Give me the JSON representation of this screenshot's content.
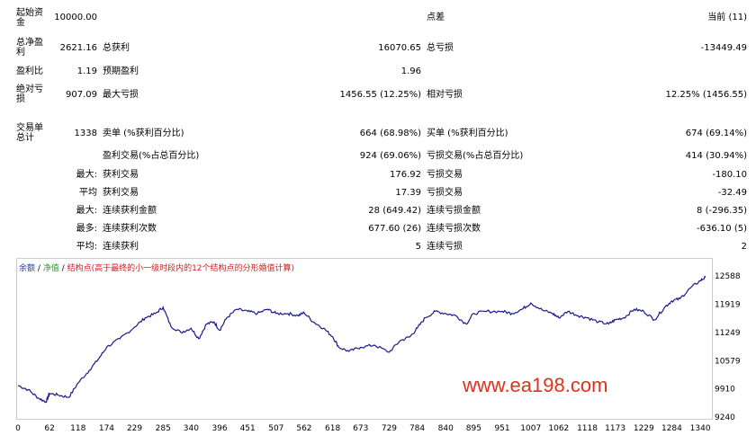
{
  "report": {
    "initial_deposit_label": "起始资金",
    "initial_deposit_value": "10000.00",
    "spread_label": "点差",
    "spread_value": "当前 (11)",
    "total_net_profit_label": "总净盈利",
    "total_net_profit_value": "2621.16",
    "gross_profit_label": "总获利",
    "gross_profit_value": "16070.65",
    "gross_loss_label": "总亏损",
    "gross_loss_value": "-13449.49",
    "profit_factor_label": "盈利比",
    "profit_factor_value": "1.19",
    "expected_payoff_label": "预期盈利",
    "expected_payoff_value": "1.96",
    "abs_drawdown_label": "绝对亏损",
    "abs_drawdown_value": "907.09",
    "max_drawdown_label": "最大亏损",
    "max_drawdown_value": "1456.55 (12.25%)",
    "rel_drawdown_label": "相对亏损",
    "rel_drawdown_value": "12.25% (1456.55)",
    "total_trades_label": "交易单总计",
    "total_trades_value": "1338",
    "short_label": "卖单 (%获利百分比)",
    "short_value": "664 (68.98%)",
    "long_label": "买单 (%获利百分比)",
    "long_value": "674 (69.14%)",
    "profit_trades_label": "盈利交易(%占总百分比)",
    "profit_trades_value": "924 (69.06%)",
    "loss_trades_label": "亏损交易(%占总百分比)",
    "loss_trades_value": "414 (30.94%)",
    "largest_prefix": "最大:",
    "largest_profit_label": "获利交易",
    "largest_profit_value": "176.92",
    "largest_loss_label": "亏损交易",
    "largest_loss_value": "-180.10",
    "average_prefix": "平均",
    "avg_profit_label": "获利交易",
    "avg_profit_value": "17.39",
    "avg_loss_label": "亏损交易",
    "avg_loss_value": "-32.49",
    "max_prefix": "最大:",
    "max_consec_wins_label": "连续获利金额",
    "max_consec_wins_value": "28 (649.42)",
    "max_consec_losses_label": "连续亏损金额",
    "max_consec_losses_value": "8 (-296.35)",
    "maximal_prefix": "最多:",
    "maximal_consec_profit_label": "连续获利次数",
    "maximal_consec_profit_value": "677.60 (26)",
    "maximal_consec_loss_label": "连续亏损次数",
    "maximal_consec_loss_value": "-636.10 (5)",
    "avg2_prefix": "平均:",
    "avg_consec_wins_label": "连续获利",
    "avg_consec_wins_value": "5",
    "avg_consec_losses_label": "连续亏损",
    "avg_consec_losses_value": "2"
  },
  "legend": {
    "balance": "余额",
    "sep1": " / ",
    "equity": "净值",
    "sep2": " / ",
    "points": "结构点(高于最终的小一级时段内的12个结构点的分形婚值计算)",
    "balance_color": "#1f3fa0",
    "equity_color": "#2e9b2e",
    "points_color": "#cc2222"
  },
  "watermark": "www.ea198.com",
  "chart_data": {
    "type": "line",
    "series": [
      {
        "name": "余额",
        "color": "#1a1a8c",
        "points": [
          [
            0,
            9990
          ],
          [
            20,
            9890
          ],
          [
            40,
            9690
          ],
          [
            55,
            9600
          ],
          [
            62,
            9800
          ],
          [
            80,
            9760
          ],
          [
            100,
            9710
          ],
          [
            118,
            10050
          ],
          [
            140,
            10350
          ],
          [
            160,
            10650
          ],
          [
            174,
            10900
          ],
          [
            200,
            11100
          ],
          [
            229,
            11380
          ],
          [
            250,
            11600
          ],
          [
            270,
            11700
          ],
          [
            285,
            11850
          ],
          [
            300,
            11400
          ],
          [
            320,
            11250
          ],
          [
            340,
            11350
          ],
          [
            355,
            11100
          ],
          [
            370,
            11450
          ],
          [
            385,
            11500
          ],
          [
            396,
            11300
          ],
          [
            410,
            11600
          ],
          [
            430,
            11800
          ],
          [
            451,
            11750
          ],
          [
            470,
            11700
          ],
          [
            490,
            11800
          ],
          [
            507,
            11700
          ],
          [
            530,
            11700
          ],
          [
            550,
            11650
          ],
          [
            562,
            11720
          ],
          [
            580,
            11500
          ],
          [
            600,
            11350
          ],
          [
            618,
            11150
          ],
          [
            630,
            10900
          ],
          [
            650,
            10800
          ],
          [
            673,
            10900
          ],
          [
            700,
            10950
          ],
          [
            729,
            10780
          ],
          [
            750,
            11050
          ],
          [
            770,
            11150
          ],
          [
            784,
            11350
          ],
          [
            800,
            11600
          ],
          [
            820,
            11750
          ],
          [
            840,
            11700
          ],
          [
            860,
            11650
          ],
          [
            880,
            11450
          ],
          [
            895,
            11700
          ],
          [
            920,
            11750
          ],
          [
            951,
            11750
          ],
          [
            970,
            11700
          ],
          [
            990,
            11800
          ],
          [
            1007,
            11950
          ],
          [
            1030,
            11780
          ],
          [
            1050,
            11700
          ],
          [
            1062,
            11600
          ],
          [
            1080,
            11750
          ],
          [
            1100,
            11650
          ],
          [
            1118,
            11600
          ],
          [
            1140,
            11500
          ],
          [
            1160,
            11450
          ],
          [
            1173,
            11550
          ],
          [
            1190,
            11600
          ],
          [
            1210,
            11800
          ],
          [
            1229,
            11750
          ],
          [
            1250,
            11550
          ],
          [
            1270,
            11850
          ],
          [
            1284,
            12000
          ],
          [
            1300,
            12050
          ],
          [
            1320,
            12300
          ],
          [
            1340,
            12480
          ],
          [
            1350,
            12560
          ]
        ]
      }
    ],
    "x_ticks": [
      0,
      62,
      118,
      174,
      229,
      285,
      340,
      396,
      451,
      507,
      562,
      618,
      673,
      729,
      784,
      840,
      895,
      951,
      1007,
      1062,
      1118,
      1173,
      1229,
      1284,
      1340
    ],
    "y_ticks": [
      9240,
      9910,
      10579,
      11249,
      11919,
      12588
    ],
    "xlim": [
      0,
      1361
    ],
    "ylim": [
      9240,
      12700
    ]
  }
}
